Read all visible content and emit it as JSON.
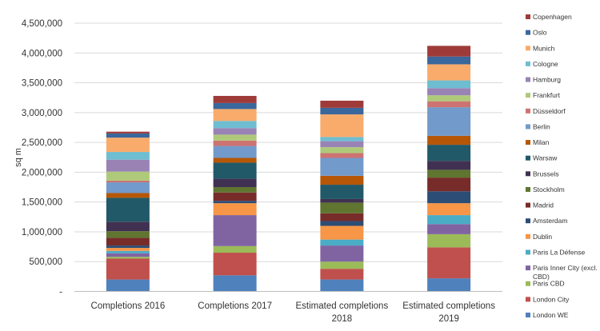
{
  "chart_data": {
    "type": "bar",
    "stacked": true,
    "ylabel": "sq m",
    "ylim": [
      0,
      4500000
    ],
    "y_ticks": [
      "-",
      "500,000",
      "1,000,000",
      "1,500,000",
      "2,000,000",
      "2,500,000",
      "3,000,000",
      "3,500,000",
      "4,000,000",
      "4,500,000"
    ],
    "grid": true,
    "legend_position": "right",
    "categories": [
      [
        "Completions 2016"
      ],
      [
        "Completions 2017"
      ],
      [
        "Estimated completions",
        "2018"
      ],
      [
        "Estimated completions",
        "2019"
      ]
    ],
    "series": [
      {
        "name": "London WE",
        "color": "#4F81BD",
        "values": [
          200000,
          270000,
          200000,
          220000
        ]
      },
      {
        "name": "London City",
        "color": "#C0504D",
        "values": [
          350000,
          380000,
          180000,
          520000
        ]
      },
      {
        "name": "Paris CBD",
        "color": "#9BBB59",
        "values": [
          30000,
          110000,
          120000,
          220000
        ]
      },
      {
        "name": "Paris Inner City (excl. CBD)",
        "color": "#8064A2",
        "values": [
          60000,
          520000,
          270000,
          170000
        ]
      },
      {
        "name": "Paris La Défense",
        "color": "#4BACC6",
        "values": [
          40000,
          0,
          100000,
          150000
        ]
      },
      {
        "name": "Dublin",
        "color": "#F79646",
        "values": [
          50000,
          200000,
          230000,
          200000
        ]
      },
      {
        "name": "Amsterdam",
        "color": "#2C4D75",
        "values": [
          40000,
          40000,
          80000,
          200000
        ]
      },
      {
        "name": "Madrid",
        "color": "#772C2A",
        "values": [
          130000,
          140000,
          130000,
          230000
        ]
      },
      {
        "name": "Stockholm",
        "color": "#5F7530",
        "values": [
          110000,
          90000,
          180000,
          130000
        ]
      },
      {
        "name": "Brussels",
        "color": "#403152",
        "values": [
          160000,
          140000,
          60000,
          150000
        ]
      },
      {
        "name": "Warsaw",
        "color": "#215968",
        "values": [
          400000,
          270000,
          240000,
          270000
        ]
      },
      {
        "name": "Milan",
        "color": "#B65708",
        "values": [
          80000,
          80000,
          150000,
          150000
        ]
      },
      {
        "name": "Berlin",
        "color": "#729ACA",
        "values": [
          180000,
          200000,
          300000,
          480000
        ]
      },
      {
        "name": "Düsseldorf",
        "color": "#CD7371",
        "values": [
          30000,
          90000,
          80000,
          100000
        ]
      },
      {
        "name": "Frankfurt",
        "color": "#AFC97A",
        "values": [
          150000,
          100000,
          100000,
          100000
        ]
      },
      {
        "name": "Hamburg",
        "color": "#9983B5",
        "values": [
          200000,
          110000,
          100000,
          120000
        ]
      },
      {
        "name": "Cologne",
        "color": "#6FBDD1",
        "values": [
          130000,
          120000,
          70000,
          130000
        ]
      },
      {
        "name": "Munich",
        "color": "#F9AB6B",
        "values": [
          240000,
          200000,
          380000,
          270000
        ]
      },
      {
        "name": "Oslo",
        "color": "#3A679C",
        "values": [
          70000,
          100000,
          110000,
          130000
        ]
      },
      {
        "name": "Copenhagen",
        "color": "#9E3B39",
        "values": [
          30000,
          120000,
          120000,
          180000
        ]
      }
    ]
  }
}
